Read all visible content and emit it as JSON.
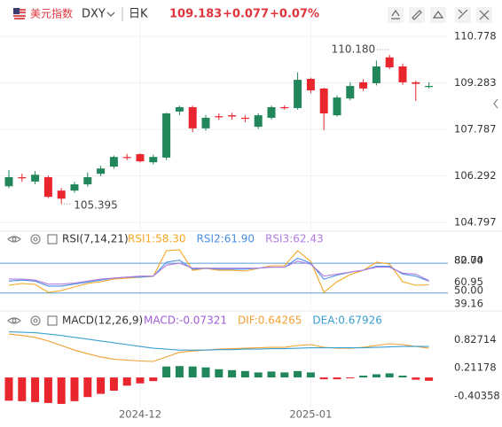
{
  "header": {
    "name": "美元指数",
    "code": "DXY",
    "period": "日K",
    "price": "109.183",
    "change": "+0.077",
    "change_pct": "+0.07%"
  },
  "chart_data": [
    {
      "type": "candlestick",
      "categories": [
        null,
        null,
        null,
        null,
        null,
        null,
        null,
        null,
        null,
        null,
        "2024-12",
        null,
        null,
        null,
        null,
        null,
        null,
        null,
        null,
        null,
        null,
        null,
        null,
        "2025-01",
        null,
        null,
        null,
        null,
        null,
        null,
        null,
        null,
        null
      ],
      "series": {
        "open": [
          105.96,
          106.25,
          106.11,
          106.25,
          105.82,
          105.82,
          106.02,
          106.36,
          106.59,
          106.9,
          106.99,
          106.73,
          106.88,
          108.36,
          108.5,
          107.82,
          108.21,
          108.24,
          108.16,
          107.87,
          108.16,
          108.5,
          108.47,
          109.41,
          109.1,
          108.24,
          108.78,
          109.3,
          109.27,
          110.1,
          109.81,
          109.3,
          109.15
        ],
        "high": [
          106.48,
          106.36,
          106.45,
          106.3,
          105.9,
          106.1,
          106.4,
          106.62,
          106.95,
          107.0,
          107.02,
          106.97,
          108.32,
          108.55,
          108.55,
          108.25,
          108.3,
          108.32,
          108.24,
          108.3,
          108.55,
          108.56,
          109.62,
          109.45,
          109.12,
          108.88,
          109.3,
          109.4,
          110.0,
          110.18,
          109.9,
          109.35,
          109.3
        ],
        "low": [
          105.9,
          106.1,
          106.02,
          105.58,
          105.395,
          105.75,
          105.95,
          106.28,
          106.52,
          106.8,
          106.72,
          106.66,
          106.8,
          108.25,
          107.7,
          107.74,
          108.1,
          108.1,
          108.02,
          107.8,
          108.1,
          108.42,
          108.42,
          108.95,
          107.76,
          108.2,
          108.72,
          109.02,
          109.2,
          109.72,
          109.22,
          108.7,
          109.1
        ],
        "close": [
          106.25,
          106.22,
          106.33,
          105.62,
          105.56,
          106.02,
          106.25,
          106.53,
          106.9,
          106.88,
          106.76,
          106.9,
          108.3,
          108.5,
          107.82,
          108.16,
          108.18,
          108.2,
          108.14,
          108.24,
          108.5,
          108.47,
          109.38,
          109.04,
          108.3,
          108.81,
          109.18,
          109.1,
          109.81,
          109.78,
          109.3,
          109.25,
          109.183
        ]
      },
      "up_color": "#21875a",
      "down_color": "#e9262e",
      "annotations": [
        "110.180",
        "105.395"
      ],
      "ylim": [
        104.6,
        111.09
      ],
      "yticks": [
        104.797,
        106.292,
        107.787,
        109.283,
        110.778
      ],
      "grid": true
    },
    {
      "type": "line",
      "title": "RSI(7,14,21)",
      "series": [
        {
          "name": "RSI1:58.30",
          "color": "#f5a623",
          "values": [
            57.8,
            59.6,
            58.7,
            50.7,
            52.5,
            56.1,
            59.6,
            61.4,
            64.1,
            65.0,
            65.8,
            66.7,
            92.5,
            93.4,
            72.9,
            74.7,
            72.9,
            72.9,
            72.1,
            74.7,
            77.4,
            77.4,
            92.5,
            81.8,
            50.7,
            61.4,
            68.5,
            72.9,
            81.0,
            79.2,
            61.4,
            57.8,
            58.3
          ]
        },
        {
          "name": "RSI2:61.90",
          "color": "#4a90e2",
          "values": [
            62,
            63,
            62,
            57,
            57,
            59,
            61,
            63,
            65,
            66,
            66,
            67,
            81,
            83,
            74,
            75,
            74,
            74,
            74,
            75,
            76,
            76,
            85,
            80,
            64,
            68,
            71,
            73,
            77,
            77,
            69,
            67,
            61.9
          ]
        },
        {
          "name": "RSI3:62.43",
          "color": "#b07ce0",
          "values": [
            64,
            64,
            63,
            59,
            59,
            60,
            62,
            64,
            65,
            66,
            67,
            67,
            78,
            80,
            75,
            75,
            75,
            75,
            75,
            75,
            76,
            76,
            82,
            79,
            67,
            69,
            71,
            73,
            76,
            76,
            70,
            69,
            62.43
          ]
        }
      ],
      "levels": [
        {
          "value": 80,
          "label": "80.00"
        },
        {
          "value": 50,
          "label": "50.00"
        }
      ],
      "level_color": "#5b9bd5",
      "ylim": [
        34.7,
        95.2
      ],
      "yticks": [
        39.16,
        60.95,
        82.74
      ]
    },
    {
      "type": "macd",
      "title": "MACD(12,26,9)",
      "series": [
        {
          "name": "MACD:-0.07321",
          "color": "#a05cd6",
          "values": [
            -0.51,
            -0.52,
            -0.54,
            -0.56,
            -0.58,
            -0.52,
            -0.43,
            -0.36,
            -0.29,
            -0.18,
            -0.13,
            -0.08,
            0.24,
            0.25,
            0.24,
            0.22,
            0.18,
            0.16,
            0.14,
            0.11,
            0.13,
            0.11,
            0.14,
            0.11,
            -0.04,
            -0.04,
            -0.02,
            0.04,
            0.07,
            0.09,
            0.04,
            -0.05,
            -0.07321
          ]
        },
        {
          "name": "DIF:0.64265",
          "color": "#f0a030",
          "values": [
            0.95,
            0.92,
            0.88,
            0.8,
            0.7,
            0.6,
            0.52,
            0.45,
            0.4,
            0.38,
            0.36,
            0.35,
            0.45,
            0.55,
            0.58,
            0.6,
            0.62,
            0.63,
            0.64,
            0.65,
            0.66,
            0.66,
            0.7,
            0.72,
            0.66,
            0.64,
            0.64,
            0.66,
            0.7,
            0.74,
            0.72,
            0.68,
            0.64265
          ]
        },
        {
          "name": "DEA:0.67926",
          "color": "#3aa0d0",
          "values": [
            1.0,
            0.99,
            0.98,
            0.95,
            0.92,
            0.88,
            0.84,
            0.8,
            0.76,
            0.72,
            0.68,
            0.64,
            0.62,
            0.6,
            0.6,
            0.6,
            0.61,
            0.61,
            0.62,
            0.62,
            0.63,
            0.63,
            0.64,
            0.65,
            0.65,
            0.65,
            0.65,
            0.65,
            0.66,
            0.67,
            0.68,
            0.68,
            0.67926
          ]
        }
      ],
      "up_color": "#21875a",
      "down_color": "#e9262e",
      "ylim": [
        -0.62,
        1.05
      ],
      "yticks": [
        -0.40358,
        0.21178,
        0.82714
      ]
    }
  ]
}
